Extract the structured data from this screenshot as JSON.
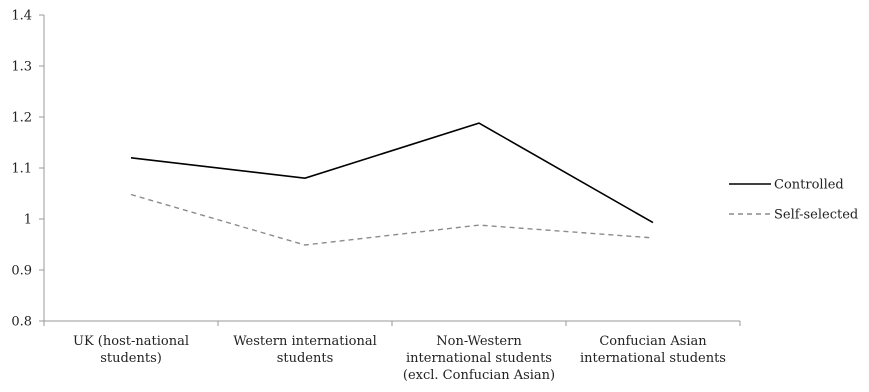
{
  "chart_data": {
    "type": "line",
    "title": "",
    "xlabel": "",
    "ylabel": "",
    "ylim": [
      0.8,
      1.4
    ],
    "y_ticks": [
      "0.8",
      "0.9",
      "1",
      "1.1",
      "1.2",
      "1.3",
      "1.4"
    ],
    "y_tick_values": [
      0.8,
      0.9,
      1.0,
      1.1,
      1.2,
      1.3,
      1.4
    ],
    "grid": false,
    "legend_position": "right",
    "categories": [
      [
        "UK (host-national",
        "students)"
      ],
      [
        "Western international",
        "students"
      ],
      [
        "Non-Western",
        "international students",
        "(excl. Confucian Asian)"
      ],
      [
        "Confucian Asian",
        "international students"
      ]
    ],
    "series": [
      {
        "name": "Controlled",
        "values": [
          1.12,
          1.08,
          1.188,
          0.993
        ],
        "color": "#000000",
        "dash": "solid"
      },
      {
        "name": "Self-selected",
        "values": [
          1.048,
          0.949,
          0.988,
          0.963
        ],
        "color": "#8c8c8c",
        "dash": "dashed"
      }
    ]
  }
}
